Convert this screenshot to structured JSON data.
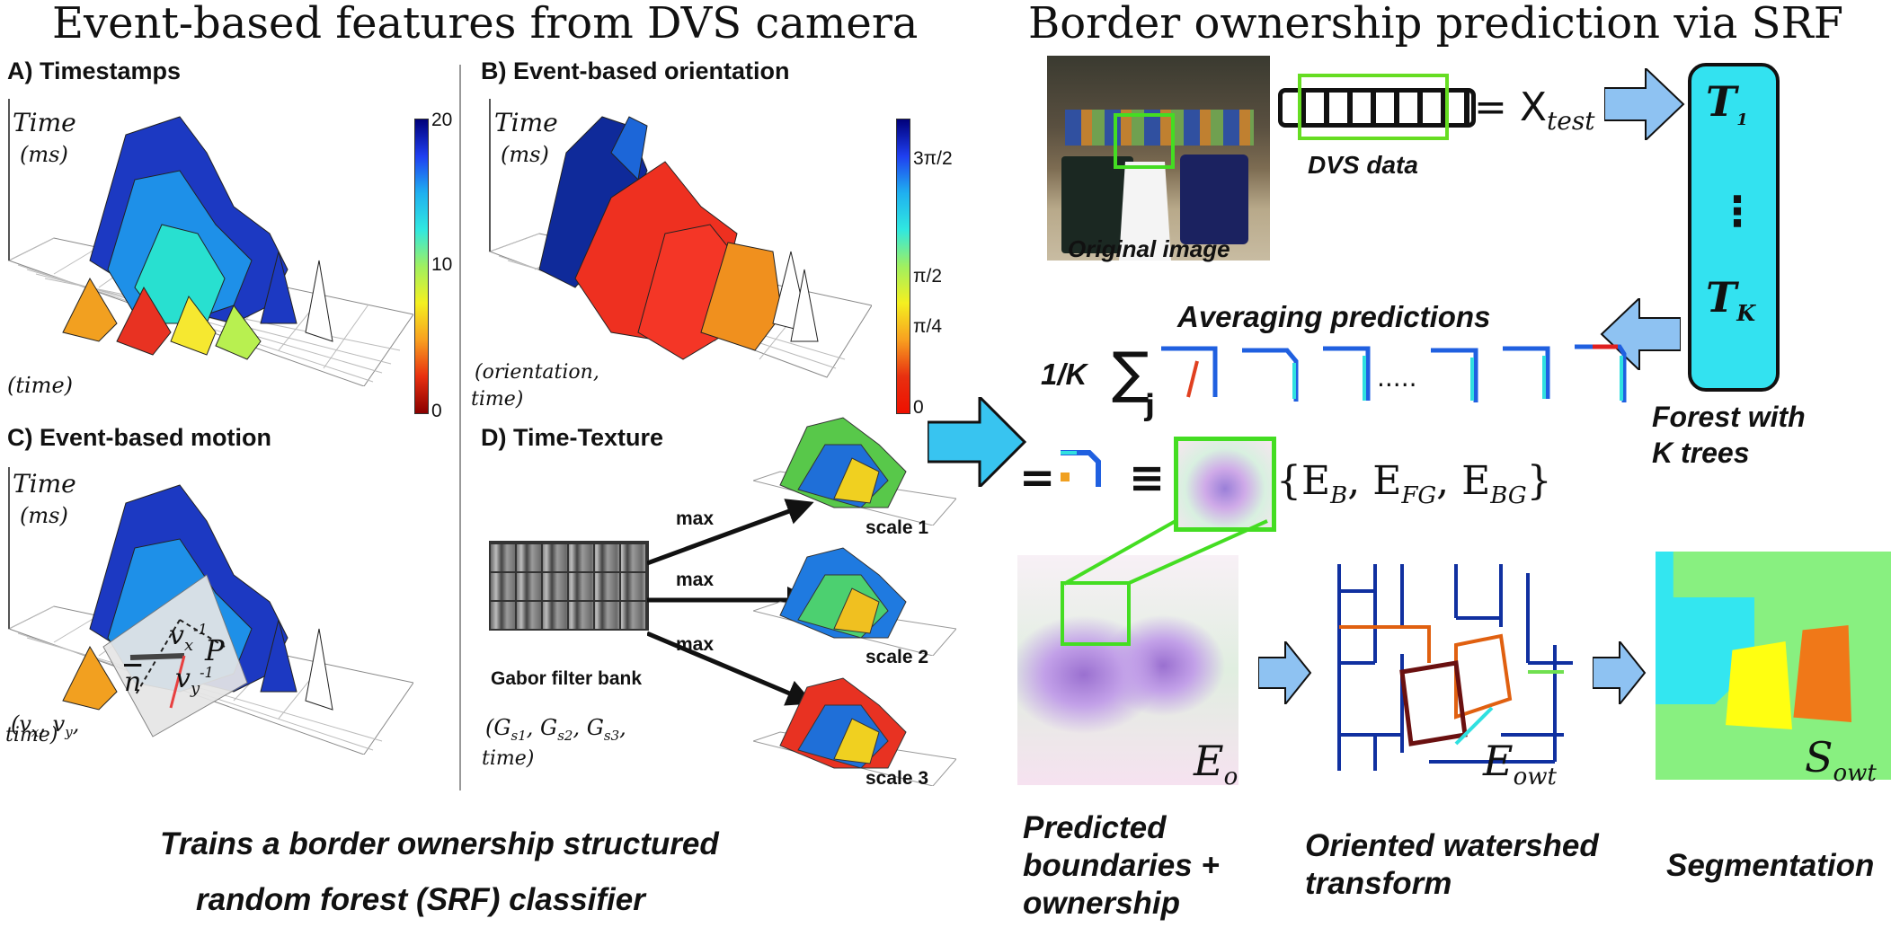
{
  "left": {
    "title": "Event-based features from DVS camera",
    "panels": {
      "a": {
        "label": "A) Timestamps",
        "z_label": "Time",
        "z_unit": "(ms)",
        "x_label": "(time)"
      },
      "b": {
        "label": "B) Event-based orientation",
        "z_label": "Time",
        "z_unit": "(ms)",
        "x_label_1": "(orientation,",
        "x_label_2": "time)"
      },
      "c": {
        "label": "C) Event-based motion",
        "z_label": "Time",
        "z_unit": "(ms)",
        "x_label_1": "(v",
        "x_label_2": "time)",
        "vx": "v",
        "vy": "v",
        "vsup": "-1",
        "vsubx": "x",
        "vsuby": "y",
        "plane": "P",
        "normal": "n"
      },
      "d": {
        "label": "D) Time-Texture",
        "filter_bank": "Gabor filter bank",
        "max": "max",
        "scales": [
          "scale 1",
          "scale 2",
          "scale 3"
        ],
        "x_label_1": "(G",
        "x_label_2": "time)"
      }
    },
    "colorbar_a": {
      "ticks": [
        "20",
        "10",
        "0"
      ]
    },
    "colorbar_b": {
      "ticks": [
        "3π/2",
        "π/2",
        "π/4",
        "0"
      ]
    },
    "caption_1": "Trains a border ownership structured",
    "caption_2": "random forest (SRF) classifier"
  },
  "right": {
    "title": "Border ownership prediction via SRF",
    "original_image": "Original image",
    "dvs_data": "DVS data",
    "x_test": "= X",
    "x_test_sub": "test",
    "tree_1": "T",
    "tree_1_sub": "1",
    "tree_dots": "⋮",
    "tree_k": "T",
    "tree_k_sub": "K",
    "forest_1": "Forest with",
    "forest_2": "K trees",
    "averaging": "Averaging predictions",
    "sum_prefix": "1/K",
    "sum_symbol": "∑",
    "sum_sub": "j",
    "dots": ".....",
    "equals": "=",
    "equiv": "≡",
    "edge_set": "{E",
    "labels": {
      "eo": "E",
      "eo_sub": "o",
      "eowt": "E",
      "eowt_sub": "owt",
      "sowt": "S",
      "sowt_sub": "owt"
    },
    "cap_pred_1": "Predicted",
    "cap_pred_2": "boundaries +",
    "cap_pred_3": "ownership",
    "cap_owt_1": "Oriented watershed",
    "cap_owt_2": "transform",
    "cap_seg": "Segmentation"
  },
  "colors": {
    "arrow_blue": "#8ec2f2",
    "arrow_cyan": "#38c4f0",
    "forest_cyan": "#33e2f0",
    "highlight_green": "#44dd22",
    "seg_bg": "#88f080",
    "seg_cyan": "#33e6f0",
    "seg_yellow": "#ffff11",
    "seg_orange": "#f07818"
  }
}
